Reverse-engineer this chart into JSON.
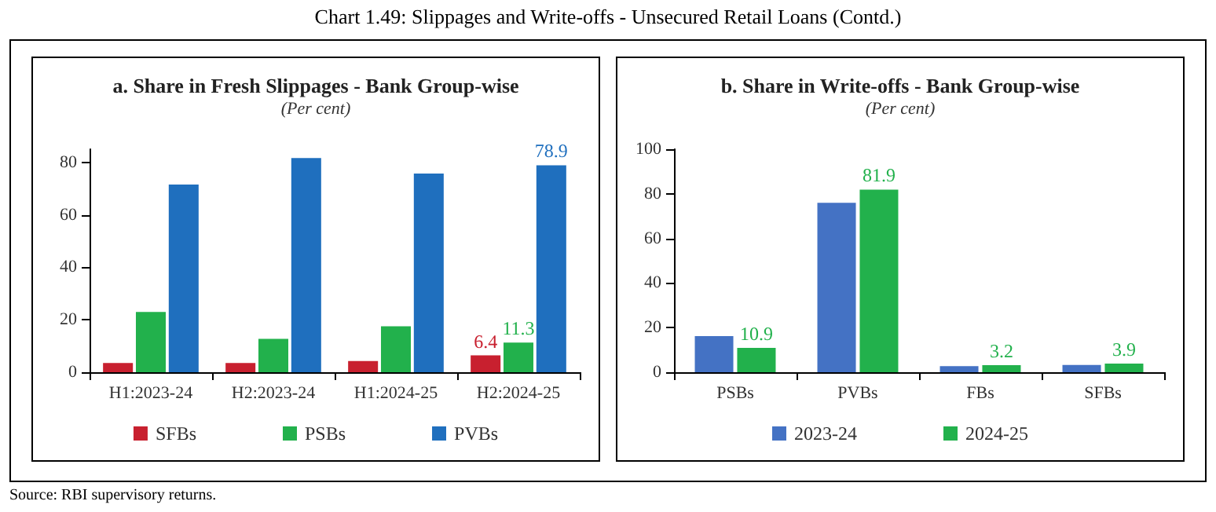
{
  "chart_data": [
    {
      "type": "bar",
      "title": "a. Share in Fresh Slippages - Bank Group-wise",
      "subtitle": "(Per cent)",
      "annotations": [
        "Chart 1.49: Slippages and Write-offs - Unsecured Retail Loans (Contd.)",
        "Source: RBI supervisory returns."
      ],
      "categories": [
        "H1:2023-24",
        "H2:2023-24",
        "H1:2024-25",
        "H2:2024-25"
      ],
      "series": [
        {
          "name": "SFBs",
          "color": "#c8202f",
          "values": [
            3.5,
            3.5,
            4.3,
            6.4
          ],
          "value_labels": [
            null,
            null,
            null,
            "6.4"
          ]
        },
        {
          "name": "PSBs",
          "color": "#22b14c",
          "values": [
            23.0,
            12.7,
            17.5,
            11.3
          ],
          "value_labels": [
            null,
            null,
            null,
            "11.3"
          ]
        },
        {
          "name": "PVBs",
          "color": "#1f6fbe",
          "values": [
            71.5,
            81.6,
            75.7,
            78.9
          ],
          "value_labels": [
            null,
            null,
            null,
            "78.9"
          ]
        }
      ],
      "ylim": [
        0,
        85
      ],
      "yticks": [
        0,
        20,
        40,
        60,
        80
      ],
      "grid": false,
      "legend": "bottom"
    },
    {
      "type": "bar",
      "title": "b. Share in Write-offs - Bank Group-wise",
      "subtitle": "(Per cent)",
      "categories": [
        "PSBs",
        "PVBs",
        "FBs",
        "SFBs"
      ],
      "series": [
        {
          "name": "2023-24",
          "color": "#4472c4",
          "values": [
            16.2,
            76.0,
            2.7,
            3.3
          ]
        },
        {
          "name": "2024-25",
          "color": "#22b14c",
          "values": [
            10.9,
            81.9,
            3.2,
            3.9
          ],
          "value_labels": [
            "10.9",
            "81.9",
            "3.2",
            "3.9"
          ]
        }
      ],
      "ylim": [
        0,
        100
      ],
      "yticks": [
        0,
        20,
        40,
        60,
        80,
        100
      ],
      "grid": false,
      "legend": "bottom"
    }
  ]
}
